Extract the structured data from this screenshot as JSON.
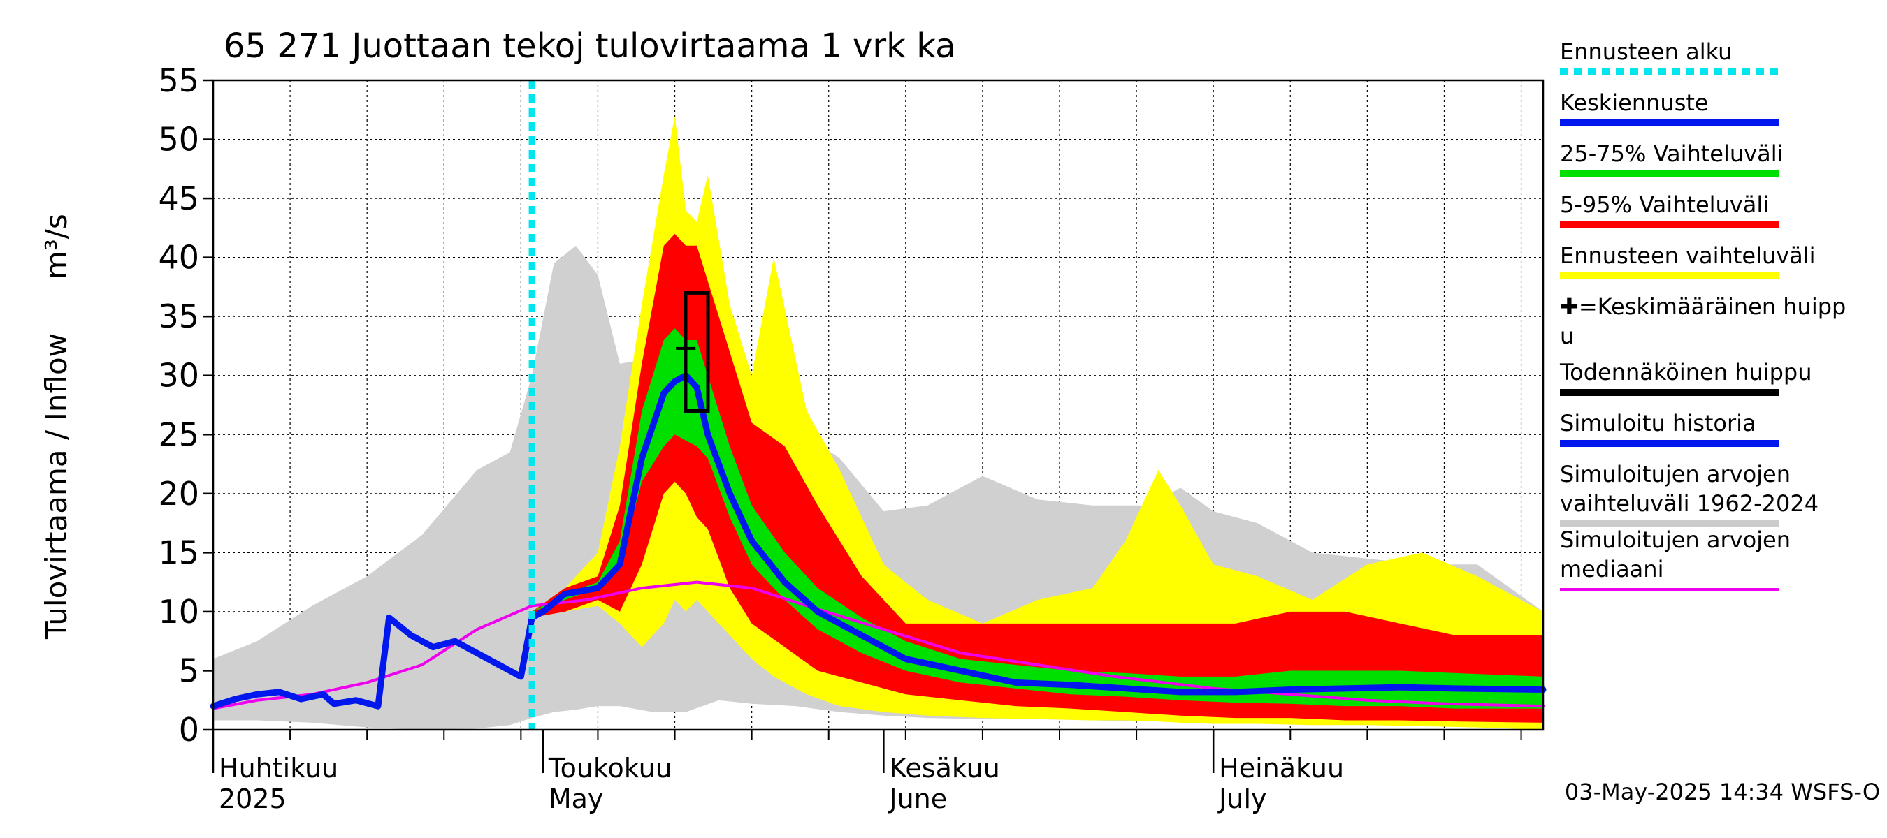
{
  "title": "65 271 Juottaan tekoj tulovirtaama 1 vrk ka",
  "footer": "03-May-2025 14:34 WSFS-O",
  "legend": {
    "items": [
      {
        "key": "forecast_start",
        "lines": [
          "Ennusteen alku"
        ],
        "color": "#00e5ee",
        "style": "dotted"
      },
      {
        "key": "mean_forecast",
        "lines": [
          "Keskiennuste"
        ],
        "color": "#0018ee",
        "style": "solid"
      },
      {
        "key": "range_25_75",
        "lines": [
          "25-75% Vaihteluväli"
        ],
        "color": "#00e000",
        "style": "solid"
      },
      {
        "key": "range_5_95",
        "lines": [
          "5-95% Vaihteluväli"
        ],
        "color": "#ff0000",
        "style": "solid"
      },
      {
        "key": "forecast_range",
        "lines": [
          "Ennusteen vaihteluväli"
        ],
        "color": "#ffff00",
        "style": "solid"
      },
      {
        "key": "mean_peak",
        "lines": [
          "✚=Keskimääräinen huipp",
          "u"
        ],
        "color": "#000000",
        "style": "none"
      },
      {
        "key": "likely_peak",
        "lines": [
          "Todennäköinen huippu"
        ],
        "color": "#000000",
        "style": "solid"
      },
      {
        "key": "sim_history",
        "lines": [
          "Simuloitu historia"
        ],
        "color": "#0018ee",
        "style": "solid"
      },
      {
        "key": "sim_range",
        "lines": [
          "Simuloitujen arvojen",
          "vaihteluväli 1962-2024"
        ],
        "color": "#cccccc",
        "style": "solid"
      },
      {
        "key": "sim_median",
        "lines": [
          "Simuloitujen arvojen",
          "mediaani"
        ],
        "color": "#ee00ee",
        "style": "solid"
      }
    ]
  },
  "chart_data": {
    "type": "area",
    "ylabel": "Tulovirtaama / Inflow",
    "yunit": "m³/s",
    "ylim": [
      0,
      55
    ],
    "yticks": [
      0,
      5,
      10,
      15,
      20,
      25,
      30,
      35,
      40,
      45,
      50,
      55
    ],
    "xlim": [
      "2025-04-01",
      "2025-07-31"
    ],
    "x_month_labels": [
      {
        "date": "2025-04-01",
        "fi": "Huhtikuu",
        "en": "2025"
      },
      {
        "date": "2025-05-01",
        "fi": "Toukokuu",
        "en": "May"
      },
      {
        "date": "2025-06-01",
        "fi": "Kesäkuu",
        "en": "June"
      },
      {
        "date": "2025-07-01",
        "fi": "Heinäkuu",
        "en": "July"
      }
    ],
    "forecast_start": "2025-04-30",
    "likely_peak": {
      "date": "2025-05-15",
      "low": 27,
      "high": 37
    },
    "mean_peak": {
      "date": "2025-05-14",
      "value": 32.3
    },
    "sim_range": {
      "x": [
        "2025-04-01",
        "2025-04-05",
        "2025-04-10",
        "2025-04-15",
        "2025-04-20",
        "2025-04-25",
        "2025-04-28",
        "2025-04-30",
        "2025-05-02",
        "2025-05-04",
        "2025-05-06",
        "2025-05-08",
        "2025-05-11",
        "2025-05-14",
        "2025-05-17",
        "2025-05-20",
        "2025-05-24",
        "2025-05-28",
        "2025-06-01",
        "2025-06-05",
        "2025-06-10",
        "2025-06-15",
        "2025-06-20",
        "2025-06-25",
        "2025-06-28",
        "2025-07-01",
        "2025-07-05",
        "2025-07-10",
        "2025-07-15",
        "2025-07-20",
        "2025-07-25",
        "2025-07-31"
      ],
      "low": [
        0.8,
        0.8,
        0.6,
        0.2,
        0.0,
        0.1,
        0.4,
        1.0,
        1.5,
        1.7,
        2.0,
        2.0,
        1.5,
        1.5,
        2.5,
        2.2,
        2.0,
        1.5,
        1.2,
        1.0,
        0.9,
        0.9,
        0.8,
        0.7,
        0.8,
        0.7,
        0.5,
        0.6,
        0.8,
        0.9,
        0.5,
        0.3
      ],
      "high": [
        6.0,
        7.5,
        10.5,
        13.0,
        16.5,
        22.0,
        23.5,
        30.0,
        39.5,
        41.0,
        38.5,
        31.0,
        31.5,
        30.5,
        26.0,
        26.5,
        25.5,
        23.0,
        18.5,
        19.0,
        21.5,
        19.5,
        19.0,
        19.0,
        20.5,
        18.5,
        17.5,
        15.0,
        14.5,
        14.0,
        14.0,
        10.0
      ]
    },
    "forecast_range": {
      "x": [
        "2025-04-30",
        "2025-05-03",
        "2025-05-06",
        "2025-05-08",
        "2025-05-10",
        "2025-05-12",
        "2025-05-13",
        "2025-05-14",
        "2025-05-15",
        "2025-05-16",
        "2025-05-18",
        "2025-05-20",
        "2025-05-22",
        "2025-05-25",
        "2025-05-28",
        "2025-06-01",
        "2025-06-05",
        "2025-06-10",
        "2025-06-15",
        "2025-06-20",
        "2025-06-23",
        "2025-06-26",
        "2025-06-28",
        "2025-07-01",
        "2025-07-05",
        "2025-07-10",
        "2025-07-15",
        "2025-07-20",
        "2025-07-25",
        "2025-07-31"
      ],
      "low": [
        9.5,
        10.0,
        10.5,
        9.0,
        7.0,
        9.0,
        11.0,
        10.0,
        11.0,
        10.0,
        8.0,
        6.0,
        4.5,
        3.0,
        2.0,
        1.5,
        1.2,
        1.0,
        0.9,
        0.8,
        0.8,
        0.7,
        0.6,
        0.5,
        0.5,
        0.4,
        0.4,
        0.3,
        0.2,
        0.0
      ],
      "high": [
        10.0,
        12.0,
        15.0,
        24.0,
        36.0,
        47.0,
        52.0,
        44.0,
        43.0,
        47.0,
        36.0,
        30.0,
        40.0,
        27.0,
        22.0,
        14.0,
        11.0,
        9.0,
        11.0,
        12.0,
        16.0,
        22.0,
        19.0,
        14.0,
        13.0,
        11.0,
        14.0,
        15.0,
        13.0,
        10.0
      ]
    },
    "range_5_95": {
      "x": [
        "2025-04-30",
        "2025-05-03",
        "2025-05-06",
        "2025-05-08",
        "2025-05-10",
        "2025-05-12",
        "2025-05-13",
        "2025-05-14",
        "2025-05-15",
        "2025-05-16",
        "2025-05-18",
        "2025-05-20",
        "2025-05-23",
        "2025-05-26",
        "2025-05-30",
        "2025-06-03",
        "2025-06-08",
        "2025-06-13",
        "2025-06-18",
        "2025-06-23",
        "2025-06-28",
        "2025-07-03",
        "2025-07-08",
        "2025-07-13",
        "2025-07-18",
        "2025-07-23",
        "2025-07-31"
      ],
      "low": [
        9.5,
        10.0,
        11.0,
        10.0,
        14.0,
        20.0,
        21.0,
        20.0,
        18.0,
        17.0,
        12.0,
        9.0,
        7.0,
        5.0,
        4.0,
        3.0,
        2.5,
        2.0,
        1.8,
        1.5,
        1.2,
        1.0,
        1.0,
        0.8,
        0.8,
        0.7,
        0.6
      ],
      "high": [
        10.0,
        12.0,
        13.0,
        19.0,
        31.0,
        41.0,
        42.0,
        41.0,
        41.0,
        38.0,
        32.0,
        26.0,
        24.0,
        19.0,
        13.0,
        9.0,
        9.0,
        9.0,
        9.0,
        9.0,
        9.0,
        9.0,
        10.0,
        10.0,
        9.0,
        8.0,
        8.0
      ]
    },
    "range_25_75": {
      "x": [
        "2025-04-30",
        "2025-05-03",
        "2025-05-06",
        "2025-05-08",
        "2025-05-10",
        "2025-05-12",
        "2025-05-13",
        "2025-05-14",
        "2025-05-15",
        "2025-05-16",
        "2025-05-18",
        "2025-05-20",
        "2025-05-23",
        "2025-05-26",
        "2025-05-30",
        "2025-06-03",
        "2025-06-08",
        "2025-06-13",
        "2025-06-18",
        "2025-06-23",
        "2025-06-28",
        "2025-07-03",
        "2025-07-08",
        "2025-07-13",
        "2025-07-18",
        "2025-07-23",
        "2025-07-31"
      ],
      "low": [
        10.0,
        11.0,
        12.0,
        14.0,
        21.0,
        24.0,
        25.0,
        24.5,
        24.0,
        23.0,
        18.0,
        14.0,
        11.0,
        8.5,
        6.5,
        5.0,
        4.0,
        3.5,
        3.0,
        2.8,
        2.5,
        2.3,
        2.2,
        2.0,
        2.0,
        1.8,
        1.8
      ],
      "high": [
        10.0,
        11.5,
        12.5,
        16.0,
        27.0,
        33.0,
        34.0,
        33.0,
        33.0,
        30.0,
        24.0,
        19.0,
        15.0,
        12.0,
        9.5,
        7.5,
        6.0,
        5.5,
        5.0,
        4.8,
        4.5,
        4.5,
        5.0,
        5.0,
        5.0,
        4.8,
        4.5
      ]
    },
    "mean_forecast": {
      "x": [
        "2025-04-30",
        "2025-05-01",
        "2025-05-03",
        "2025-05-06",
        "2025-05-08",
        "2025-05-10",
        "2025-05-12",
        "2025-05-13",
        "2025-05-14",
        "2025-05-15",
        "2025-05-16",
        "2025-05-18",
        "2025-05-20",
        "2025-05-23",
        "2025-05-26",
        "2025-05-30",
        "2025-06-03",
        "2025-06-08",
        "2025-06-13",
        "2025-06-18",
        "2025-06-23",
        "2025-06-28",
        "2025-07-03",
        "2025-07-08",
        "2025-07-13",
        "2025-07-18",
        "2025-07-23",
        "2025-07-31"
      ],
      "y": [
        9.5,
        10.0,
        11.5,
        12.0,
        14.0,
        23.0,
        28.5,
        29.5,
        30.0,
        29.0,
        25.0,
        20.0,
        16.0,
        12.5,
        10.0,
        8.0,
        6.0,
        5.0,
        4.0,
        3.8,
        3.5,
        3.2,
        3.2,
        3.4,
        3.5,
        3.6,
        3.5,
        3.4
      ]
    },
    "sim_history": {
      "x": [
        "2025-04-01",
        "2025-04-03",
        "2025-04-05",
        "2025-04-07",
        "2025-04-09",
        "2025-04-11",
        "2025-04-12",
        "2025-04-14",
        "2025-04-16",
        "2025-04-17",
        "2025-04-19",
        "2025-04-21",
        "2025-04-23",
        "2025-04-25",
        "2025-04-27",
        "2025-04-29",
        "2025-04-30"
      ],
      "y": [
        2.0,
        2.6,
        3.0,
        3.2,
        2.6,
        3.0,
        2.2,
        2.5,
        2.0,
        9.5,
        8.0,
        7.0,
        7.5,
        6.5,
        5.5,
        4.5,
        9.5
      ]
    },
    "sim_median": {
      "x": [
        "2025-04-01",
        "2025-04-05",
        "2025-04-10",
        "2025-04-15",
        "2025-04-20",
        "2025-04-25",
        "2025-04-30",
        "2025-05-05",
        "2025-05-10",
        "2025-05-15",
        "2025-05-20",
        "2025-05-25",
        "2025-06-01",
        "2025-06-08",
        "2025-06-15",
        "2025-06-22",
        "2025-07-01",
        "2025-07-08",
        "2025-07-15",
        "2025-07-22",
        "2025-07-31"
      ],
      "y": [
        1.8,
        2.5,
        3.0,
        4.0,
        5.5,
        8.5,
        10.5,
        11.0,
        12.0,
        12.5,
        12.0,
        10.5,
        8.5,
        6.5,
        5.5,
        4.5,
        3.5,
        3.0,
        2.5,
        2.2,
        2.0
      ]
    }
  }
}
